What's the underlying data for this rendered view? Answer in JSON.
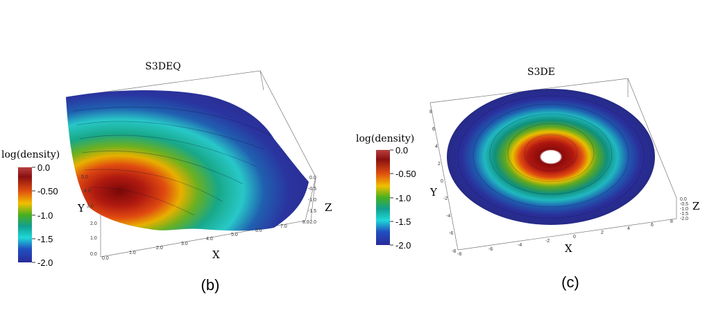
{
  "panels": [
    {
      "id": "b",
      "title": "S3DEQ",
      "caption": "(b)",
      "colorbar": {
        "label": "log(density)",
        "ticks": [
          "0.0",
          "-0.50",
          "-1.0",
          "-1.5",
          "-2.0"
        ]
      },
      "axes": {
        "x_label": "X",
        "y_label": "Y",
        "z_label": "Z",
        "x_ticks": [
          "0.0",
          "1.0",
          "2.0",
          "3.0",
          "4.0",
          "5.0",
          "6.0",
          "7.0",
          "8.0"
        ],
        "y_ticks": [
          "0.0",
          "1.0",
          "2.0",
          "3.0",
          "4.0",
          "5.0"
        ],
        "z_ticks": [
          "0.0",
          "-0.5",
          "-1.0",
          "-1.5",
          "-2.0"
        ]
      }
    },
    {
      "id": "c",
      "title": "S3DE",
      "caption": "(c)",
      "colorbar": {
        "label": "log(density)",
        "ticks": [
          "0.0",
          "-0.50",
          "-1.0",
          "-1.5",
          "-2.0"
        ]
      },
      "axes": {
        "x_label": "X",
        "y_label": "Y",
        "z_label": "Z",
        "x_ticks": [
          "-8",
          "-6",
          "-4",
          "-2",
          "0",
          "2",
          "4",
          "6",
          "8"
        ],
        "y_ticks": [
          "-8",
          "-6",
          "-4",
          "-2",
          "0",
          "2",
          "4",
          "6",
          "8"
        ],
        "z_ticks": [
          "0.0",
          "-0.5",
          "-1.0",
          "-1.5",
          "-2.0"
        ]
      }
    }
  ]
}
